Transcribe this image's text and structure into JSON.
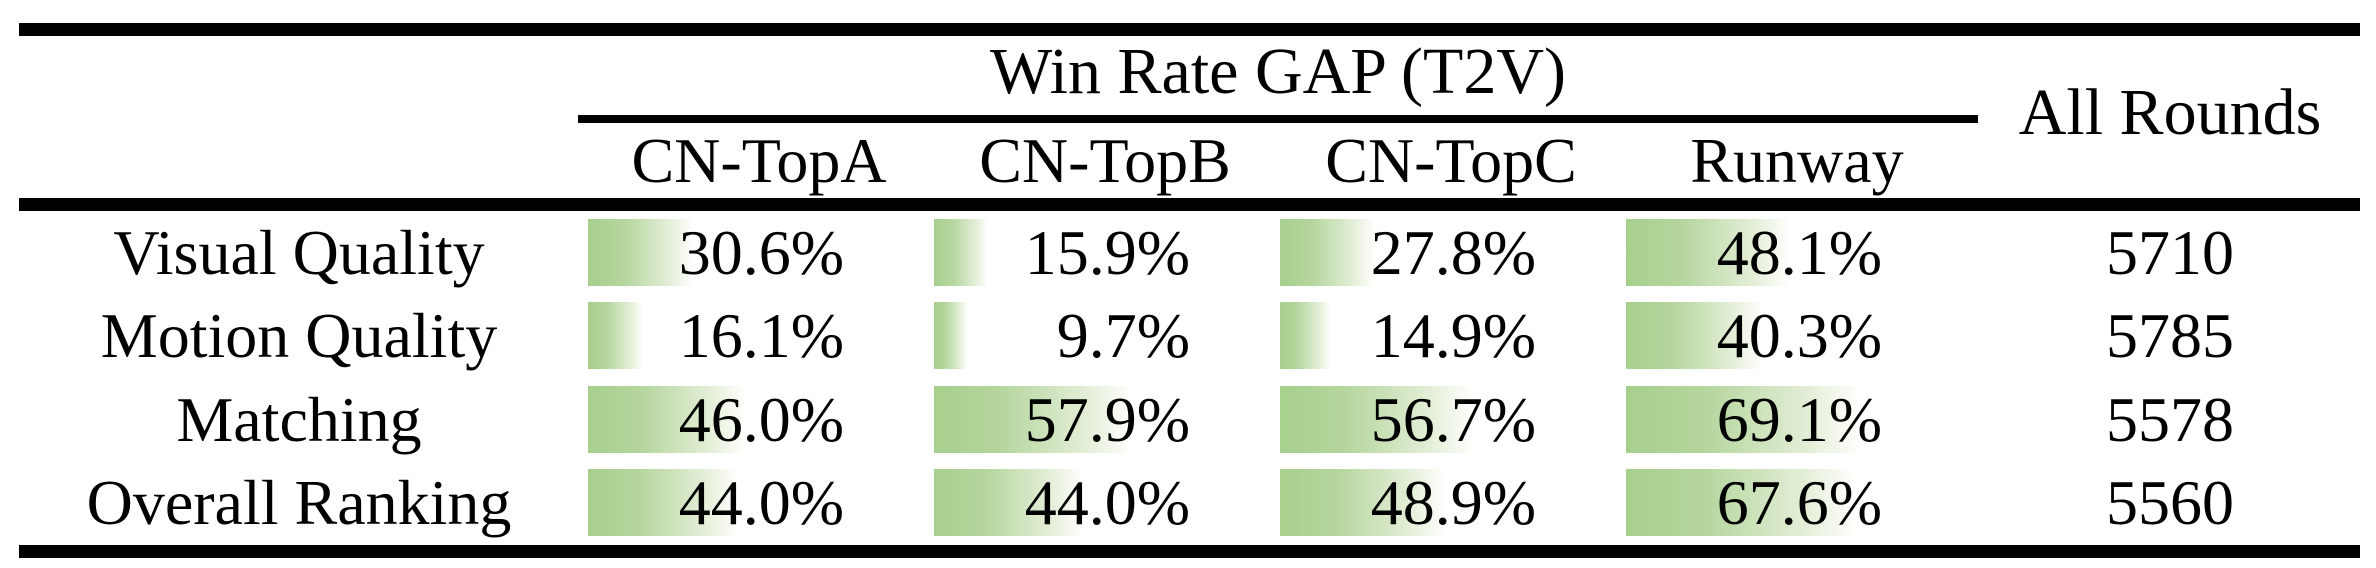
{
  "table": {
    "group_title": "Win Rate GAP (T2V)",
    "all_rounds_header": "All Rounds",
    "columns": [
      "CN-TopA",
      "CN-TopB",
      "CN-TopC",
      "Runway"
    ],
    "rows": [
      {
        "label": "Visual Quality",
        "values": [
          "30.6%",
          "15.9%",
          "27.8%",
          "48.1%"
        ],
        "all_rounds": "5710"
      },
      {
        "label": "Motion Quality",
        "values": [
          "16.1%",
          "9.7%",
          "14.9%",
          "40.3%"
        ],
        "all_rounds": "5785"
      },
      {
        "label": "Matching",
        "values": [
          "46.0%",
          "57.9%",
          "56.7%",
          "69.1%"
        ],
        "all_rounds": "5578"
      },
      {
        "label": "Overall Ranking",
        "values": [
          "44.0%",
          "44.0%",
          "48.9%",
          "67.6%"
        ],
        "all_rounds": "5560"
      }
    ],
    "colors": {
      "bar_green": "#a7cf8d",
      "bar_fade": "#ffffff",
      "rule": "#000000"
    }
  },
  "chart_data": {
    "type": "table",
    "title": "Win Rate GAP (T2V)",
    "categories": [
      "Visual Quality",
      "Motion Quality",
      "Matching",
      "Overall Ranking"
    ],
    "series": [
      {
        "name": "CN-TopA",
        "values": [
          30.6,
          16.1,
          46.0,
          44.0
        ]
      },
      {
        "name": "CN-TopB",
        "values": [
          15.9,
          9.7,
          57.9,
          44.0
        ]
      },
      {
        "name": "CN-TopC",
        "values": [
          27.8,
          14.9,
          56.7,
          48.9
        ]
      },
      {
        "name": "Runway",
        "values": [
          48.1,
          40.3,
          69.1,
          67.6
        ]
      }
    ],
    "all_rounds": [
      5710,
      5785,
      5578,
      5560
    ],
    "unit": "%"
  }
}
